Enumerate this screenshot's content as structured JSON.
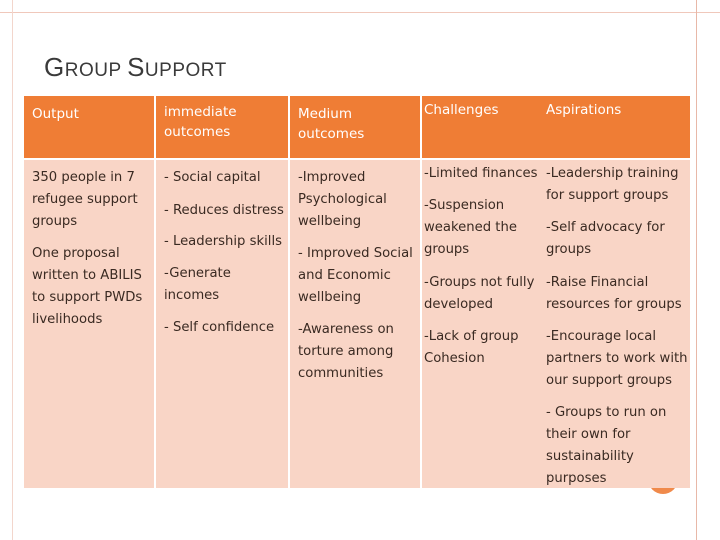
{
  "title": {
    "first": "G",
    "rest1": "ROUP ",
    "second": "S",
    "rest2": "UPPORT"
  },
  "headers": {
    "output": "Output",
    "immediate": "immediate\noutcomes",
    "medium": "Medium\noutcomes",
    "challenges": "Challenges",
    "aspirations": "Aspirations"
  },
  "output": [
    "350  people in 7\nrefugee support\ngroups",
    "One proposal\nwritten to ABILIS\nto support PWDs\nlivelihoods"
  ],
  "immediate": [
    "- Social capital",
    "- Reduces distress",
    "- Leadership skills",
    "-Generate\nincomes",
    "- Self confidence"
  ],
  "medium": [
    "-Improved\nPsychological\nwellbeing",
    "- Improved Social\nand Economic\nwellbeing",
    "-Awareness on\ntorture among\ncommunities"
  ],
  "challenges": [
    "-Limited finances",
    "-Suspension\nweakened the\ngroups",
    "-Groups  not fully\ndeveloped",
    "-Lack of group\nCohesion"
  ],
  "aspirations": [
    "-Leadership training\nfor support groups",
    "-Self advocacy for\ngroups",
    "-Raise Financial\nresources for groups",
    "-Encourage local\npartners to work with\nour support groups",
    "- Groups to  run on\ntheir own for\nsustainability\npurposes"
  ]
}
